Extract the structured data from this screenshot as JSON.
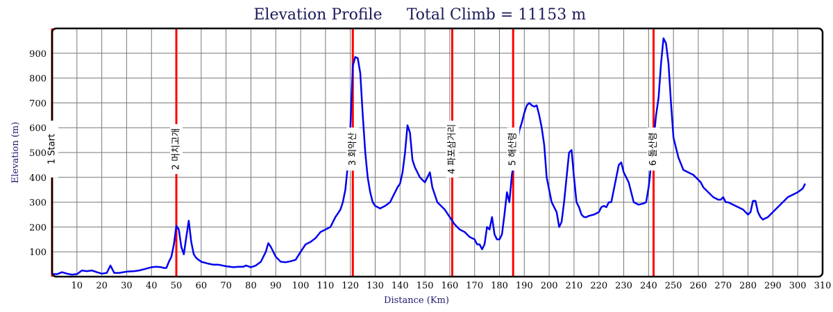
{
  "chart_data": {
    "type": "line",
    "title": "Elevation Profile",
    "subtitle": "Total Climb = 11153 m",
    "xlabel": "Distance (Km)",
    "ylabel": "Elevation (m)",
    "xlim": [
      0,
      310
    ],
    "ylim": [
      0,
      1000
    ],
    "x_ticks": [
      10,
      20,
      30,
      40,
      50,
      60,
      70,
      80,
      90,
      100,
      110,
      120,
      130,
      140,
      150,
      160,
      170,
      180,
      190,
      200,
      210,
      220,
      230,
      240,
      250,
      260,
      270,
      280,
      290,
      300,
      310
    ],
    "y_ticks": [
      100,
      200,
      300,
      400,
      500,
      600,
      700,
      800,
      900
    ],
    "grid": true,
    "line_color": "#0000ee",
    "marker_color": "#ff0000",
    "checkpoints": [
      {
        "x": 0,
        "label": "1 Start"
      },
      {
        "x": 50,
        "label": "2 머치고개"
      },
      {
        "x": 121,
        "label": "3 회악산"
      },
      {
        "x": 161,
        "label": "4 파포삼거리"
      },
      {
        "x": 185.5,
        "label": "5 해산령"
      },
      {
        "x": 242,
        "label": "6 돌산령"
      }
    ],
    "series": [
      {
        "x": [
          0,
          2,
          4,
          6,
          8,
          10,
          12,
          14,
          16,
          18,
          20,
          22,
          23.5,
          25,
          27,
          30,
          33,
          35,
          37,
          40,
          42,
          44,
          45,
          46,
          47,
          48,
          49,
          50,
          51,
          52,
          53,
          54,
          55,
          56,
          57,
          58,
          60,
          63,
          65,
          67,
          70,
          73,
          75,
          77,
          78,
          80,
          82,
          84,
          86,
          87,
          88,
          90,
          92,
          94,
          96,
          98,
          100,
          102,
          104,
          106,
          108,
          110,
          112,
          114,
          116,
          117,
          118,
          119,
          120,
          121,
          122,
          123,
          124,
          125,
          126,
          127,
          128,
          129,
          130,
          132,
          134,
          136,
          137,
          138,
          139,
          140,
          141,
          142,
          143,
          144,
          145,
          146,
          148,
          150,
          151,
          152,
          153,
          154,
          155,
          156,
          158,
          160,
          162,
          164,
          166,
          168,
          170,
          171,
          172,
          173,
          174,
          175,
          176,
          177,
          178,
          179,
          180,
          181,
          182,
          183,
          184,
          185,
          186,
          187,
          188,
          189,
          190,
          191,
          192,
          193,
          194,
          195,
          196,
          197,
          198,
          199,
          200,
          201,
          202,
          203,
          204,
          205,
          206,
          207,
          208,
          209,
          210,
          211,
          212,
          213,
          214,
          215,
          216,
          218,
          220,
          221,
          222,
          223,
          224,
          225,
          226,
          227,
          228,
          229,
          230,
          232,
          234,
          236,
          238,
          239,
          240,
          241,
          242,
          243,
          244,
          245,
          246,
          247,
          248,
          249,
          250,
          251,
          252,
          254,
          256,
          258,
          259,
          260,
          261,
          262,
          264,
          266,
          268,
          269,
          270,
          271,
          272,
          274,
          276,
          278,
          279,
          280,
          281,
          282,
          283,
          284,
          285,
          286,
          287,
          288,
          290,
          292,
          294,
          296,
          298,
          300,
          302,
          303
        ],
        "y": [
          10,
          10,
          18,
          12,
          8,
          10,
          25,
          22,
          25,
          18,
          12,
          15,
          45,
          15,
          15,
          20,
          22,
          25,
          30,
          38,
          40,
          38,
          35,
          35,
          60,
          80,
          130,
          205,
          190,
          120,
          90,
          160,
          225,
          140,
          90,
          75,
          60,
          52,
          48,
          48,
          42,
          38,
          40,
          40,
          45,
          38,
          45,
          60,
          100,
          135,
          120,
          80,
          60,
          58,
          62,
          68,
          100,
          130,
          140,
          155,
          180,
          190,
          200,
          240,
          270,
          300,
          350,
          450,
          600,
          850,
          885,
          880,
          820,
          650,
          500,
          400,
          340,
          300,
          285,
          275,
          285,
          300,
          320,
          340,
          360,
          375,
          420,
          500,
          610,
          580,
          470,
          440,
          400,
          380,
          400,
          420,
          360,
          330,
          300,
          290,
          270,
          240,
          210,
          190,
          180,
          160,
          150,
          130,
          130,
          110,
          130,
          200,
          190,
          240,
          170,
          150,
          150,
          170,
          250,
          340,
          300,
          410,
          470,
          525,
          590,
          620,
          660,
          690,
          700,
          690,
          685,
          690,
          650,
          600,
          530,
          400,
          350,
          300,
          280,
          260,
          200,
          220,
          300,
          400,
          500,
          510,
          400,
          300,
          280,
          250,
          240,
          240,
          245,
          250,
          260,
          280,
          285,
          280,
          300,
          300,
          350,
          400,
          450,
          460,
          420,
          380,
          300,
          290,
          295,
          300,
          360,
          450,
          550,
          650,
          720,
          860,
          960,
          940,
          860,
          700,
          560,
          520,
          480,
          430,
          420,
          410,
          400,
          390,
          380,
          360,
          340,
          320,
          310,
          310,
          320,
          300,
          300,
          290,
          280,
          270,
          260,
          250,
          260,
          305,
          305,
          260,
          240,
          230,
          235,
          240,
          260,
          280,
          300,
          320,
          330,
          340,
          355,
          375
        ]
      }
    ]
  }
}
